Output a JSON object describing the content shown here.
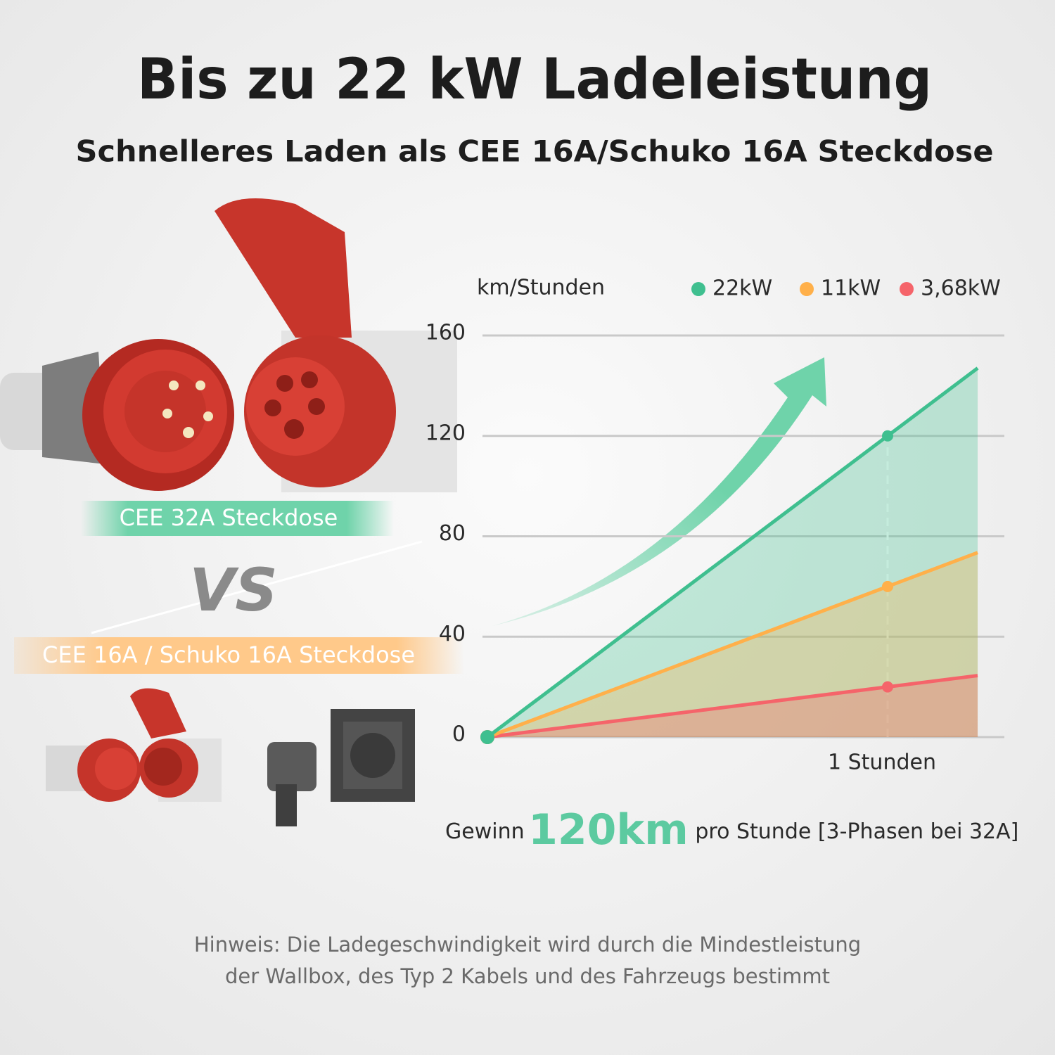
{
  "header": {
    "title": "Bis zu 22 kW Ladeleistung",
    "subtitle": "Schnelleres Laden als CEE 16A/Schuko 16A Steckdose"
  },
  "labels": {
    "fast": "CEE 32A Steckdose",
    "vs": "VS",
    "slow": "CEE 16A / Schuko 16A Steckdose"
  },
  "summary": {
    "prefix": "Gewinn",
    "highlight": "120km",
    "suffix": "pro Stunde [3-Phasen bei 32A]"
  },
  "note": [
    "Hinweis: Die Ladegeschwindigkeit wird durch die Mindestleistung",
    "der Wallbox, des Typ 2 Kabels und des Fahrzeugs bestimmt"
  ],
  "chart_data": {
    "type": "line",
    "y_label": "km/Stunden",
    "x": [
      0,
      1,
      1.225
    ],
    "xlim": [
      0,
      1.3
    ],
    "xticks": [
      {
        "value": 1,
        "label": "1 Stunden"
      }
    ],
    "ylim": [
      0,
      160
    ],
    "yticks": [
      0,
      40,
      80,
      120,
      160
    ],
    "grid": true,
    "series": [
      {
        "name": "22kW",
        "color": "#3fbf8f",
        "values": [
          0,
          120,
          147
        ]
      },
      {
        "name": "11kW",
        "color": "#ffb04a",
        "values": [
          0,
          60,
          73.5
        ]
      },
      {
        "name": "3,68kW",
        "color": "#f5646a",
        "values": [
          0,
          20,
          24.5
        ]
      }
    ]
  }
}
